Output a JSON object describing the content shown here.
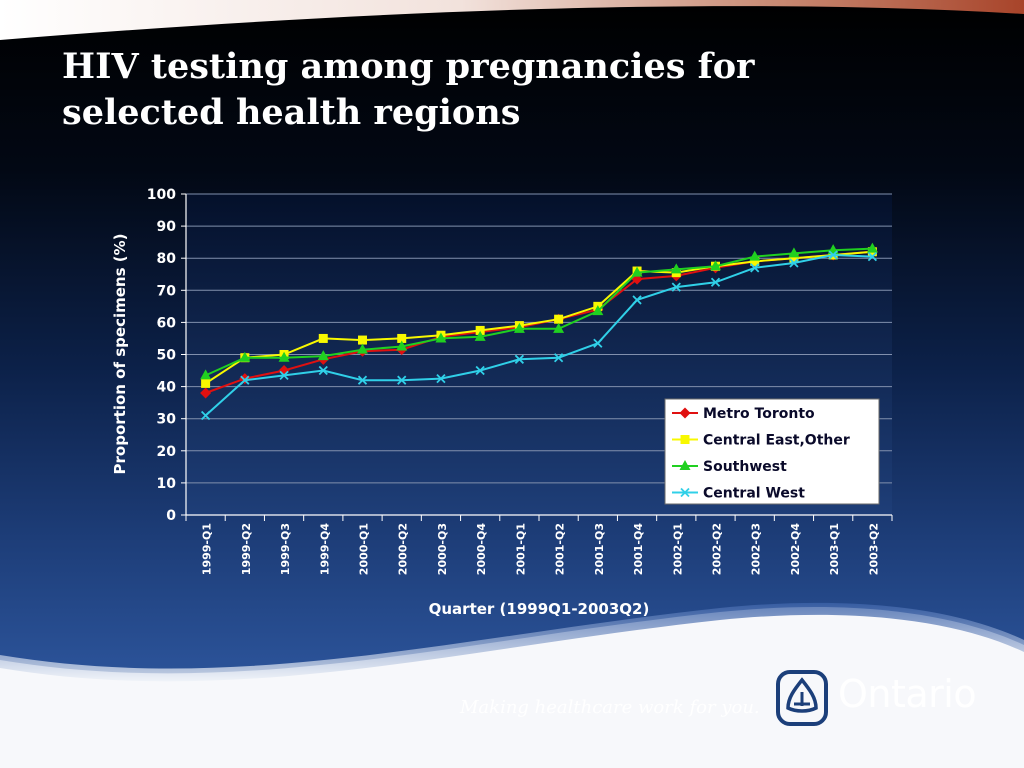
{
  "slide": {
    "title": "HIV testing among pregnancies for\nselected health regions",
    "tagline": "Making healthcare work for you.",
    "brand": "Ontario",
    "colors": {
      "background_top": "#000000",
      "background_bottom": "#30589c",
      "accent_band": "#b35335"
    }
  },
  "chart_data": {
    "type": "line",
    "title": "",
    "xlabel": "Quarter (1999Q1-2003Q2)",
    "ylabel": "Proportion of specimens (%)",
    "ylim": [
      0,
      100
    ],
    "yticks": [
      0,
      10,
      20,
      30,
      40,
      50,
      60,
      70,
      80,
      90,
      100
    ],
    "grid": "horizontal",
    "legend_position": "lower-right",
    "categories": [
      "1999-Q1",
      "1999-Q2",
      "1999-Q3",
      "1999-Q4",
      "2000-Q1",
      "2000-Q2",
      "2000-Q3",
      "2000-Q4",
      "2001-Q1",
      "2001-Q2",
      "2001-Q3",
      "2001-Q4",
      "2002-Q1",
      "2002-Q2",
      "2002-Q3",
      "2002-Q4",
      "2003-Q1",
      "2003-Q2"
    ],
    "series": [
      {
        "name": "Metro Toronto",
        "color": "#e01010",
        "marker": "diamond",
        "values": [
          38,
          42.5,
          45,
          48.5,
          51,
          51.5,
          55.5,
          57,
          58.5,
          61,
          64,
          73.5,
          74.5,
          77,
          79,
          80,
          81,
          82
        ]
      },
      {
        "name": "Central East,Other",
        "color": "#f8f800",
        "marker": "square",
        "values": [
          41,
          49,
          50,
          55,
          54.5,
          55,
          56,
          57.5,
          59,
          61,
          65,
          76,
          75.5,
          77.5,
          79,
          80,
          81,
          82
        ]
      },
      {
        "name": "Southwest",
        "color": "#20d020",
        "marker": "triangle",
        "values": [
          43.5,
          49,
          49,
          49.5,
          51.5,
          52.5,
          55,
          55.5,
          58,
          58,
          63.5,
          75.5,
          76.5,
          77.5,
          80.5,
          81.5,
          82.5,
          83
        ]
      },
      {
        "name": "Central West",
        "color": "#30d0e8",
        "marker": "x",
        "values": [
          31,
          42,
          43.5,
          45,
          42,
          42,
          42.5,
          45,
          48.5,
          49,
          53.5,
          67,
          71,
          72.5,
          77,
          78.5,
          81,
          80.5
        ]
      }
    ]
  }
}
